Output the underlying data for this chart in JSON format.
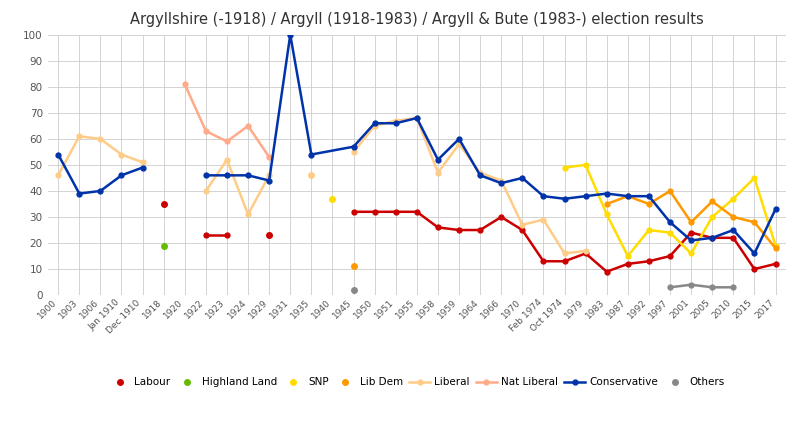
{
  "title": "Argyllshire (-1918) / Argyll (1918-1983) / Argyll & Bute (1983-) election results",
  "ylim": [
    0,
    100
  ],
  "yticks": [
    0,
    10,
    20,
    30,
    40,
    50,
    60,
    70,
    80,
    90,
    100
  ],
  "xtick_labels": [
    "1900",
    "1903",
    "1906",
    "Jan 1910",
    "Dec 1910",
    "1918",
    "1920",
    "1922",
    "1923",
    "1924",
    "1929",
    "1931",
    "1935",
    "1940",
    "1945",
    "1950",
    "1951",
    "1955",
    "1958",
    "1959",
    "1964",
    "1966",
    "1970",
    "Feb 1974",
    "Oct 1974",
    "1979",
    "1983",
    "1987",
    "1992",
    "1997",
    "2001",
    "2005",
    "2010",
    "2015",
    "2017"
  ],
  "series": [
    {
      "name": "Labour",
      "color": "#cc0000",
      "segments": [
        [
          [
            1918,
            35
          ]
        ],
        [
          [
            1922,
            23
          ],
          [
            1923,
            23
          ]
        ],
        [
          [
            1929,
            23
          ]
        ],
        [
          [
            1945,
            32
          ],
          [
            1950,
            32
          ],
          [
            1951,
            32
          ],
          [
            1955,
            32
          ],
          [
            1958,
            26
          ],
          [
            1959,
            25
          ],
          [
            1964,
            25
          ],
          [
            1966,
            30
          ],
          [
            1970,
            25
          ],
          [
            "Feb 1974",
            13
          ],
          [
            "Oct 1974",
            13
          ],
          [
            1979,
            16
          ],
          [
            1983,
            9
          ],
          [
            1987,
            12
          ],
          [
            1992,
            13
          ],
          [
            1997,
            15
          ],
          [
            2001,
            24
          ],
          [
            2005,
            22
          ],
          [
            2010,
            22
          ],
          [
            2015,
            10
          ],
          [
            2017,
            12
          ]
        ]
      ]
    },
    {
      "name": "Highland Land",
      "color": "#66bb00",
      "segments": [
        [
          [
            1918,
            19
          ]
        ]
      ]
    },
    {
      "name": "SNP",
      "color": "#ffdd00",
      "segments": [
        [
          [
            1940,
            37
          ]
        ],
        [
          [
            "Oct 1974",
            49
          ],
          [
            1979,
            50
          ],
          [
            1983,
            31
          ],
          [
            1987,
            15
          ],
          [
            1992,
            25
          ],
          [
            1997,
            24
          ],
          [
            2001,
            16
          ],
          [
            2005,
            30
          ],
          [
            2010,
            37
          ],
          [
            2015,
            45
          ],
          [
            2017,
            19
          ]
        ]
      ]
    },
    {
      "name": "Lib Dem",
      "color": "#ff9900",
      "segments": [
        [
          [
            1945,
            11
          ]
        ],
        [
          [
            1983,
            35
          ],
          [
            1987,
            38
          ],
          [
            1992,
            35
          ],
          [
            1997,
            40
          ],
          [
            2001,
            28
          ],
          [
            2005,
            36
          ],
          [
            2010,
            30
          ],
          [
            2015,
            28
          ],
          [
            2017,
            18
          ]
        ]
      ]
    },
    {
      "name": "Liberal",
      "color": "#ffcc88",
      "segments": [
        [
          [
            1900,
            46
          ],
          [
            1903,
            61
          ],
          [
            1906,
            60
          ],
          [
            "Jan 1910",
            54
          ],
          [
            "Dec 1910",
            51
          ]
        ],
        [
          [
            1922,
            40
          ],
          [
            1923,
            52
          ],
          [
            1924,
            31
          ],
          [
            1929,
            46
          ]
        ],
        [
          [
            1935,
            46
          ]
        ],
        [
          [
            1945,
            55
          ],
          [
            1950,
            65
          ],
          [
            1951,
            67
          ],
          [
            1955,
            68
          ],
          [
            1958,
            47
          ],
          [
            1959,
            58
          ],
          [
            1964,
            47
          ],
          [
            1966,
            44
          ],
          [
            1970,
            27
          ],
          [
            "Feb 1974",
            29
          ],
          [
            "Oct 1974",
            16
          ],
          [
            1979,
            17
          ]
        ]
      ]
    },
    {
      "name": "Nat Liberal",
      "color": "#ffaa88",
      "segments": [
        [
          [
            1920,
            81
          ],
          [
            1922,
            63
          ],
          [
            1923,
            59
          ],
          [
            1924,
            65
          ],
          [
            1929,
            53
          ]
        ]
      ]
    },
    {
      "name": "Conservative",
      "color": "#0033aa",
      "segments": [
        [
          [
            1900,
            54
          ],
          [
            1903,
            39
          ],
          [
            1906,
            40
          ],
          [
            "Jan 1910",
            46
          ],
          [
            "Dec 1910",
            49
          ]
        ],
        [
          [
            1922,
            46
          ],
          [
            1923,
            46
          ],
          [
            1924,
            46
          ],
          [
            1929,
            44
          ],
          [
            1931,
            100
          ],
          [
            1935,
            54
          ],
          [
            1945,
            57
          ],
          [
            1950,
            66
          ],
          [
            1951,
            66
          ],
          [
            1955,
            68
          ],
          [
            1958,
            52
          ],
          [
            1959,
            60
          ],
          [
            1964,
            46
          ],
          [
            1966,
            43
          ],
          [
            1970,
            45
          ],
          [
            "Feb 1974",
            38
          ],
          [
            "Oct 1974",
            37
          ],
          [
            1979,
            38
          ],
          [
            1983,
            39
          ],
          [
            1987,
            38
          ],
          [
            1992,
            38
          ],
          [
            1997,
            28
          ],
          [
            2001,
            21
          ],
          [
            2005,
            22
          ],
          [
            2010,
            25
          ],
          [
            2015,
            16
          ],
          [
            2017,
            33
          ]
        ]
      ]
    },
    {
      "name": "Others",
      "color": "#888888",
      "segments": [
        [
          [
            1945,
            2
          ]
        ],
        [
          [
            1997,
            3
          ],
          [
            2001,
            4
          ],
          [
            2005,
            3
          ],
          [
            2010,
            3
          ]
        ]
      ]
    }
  ]
}
